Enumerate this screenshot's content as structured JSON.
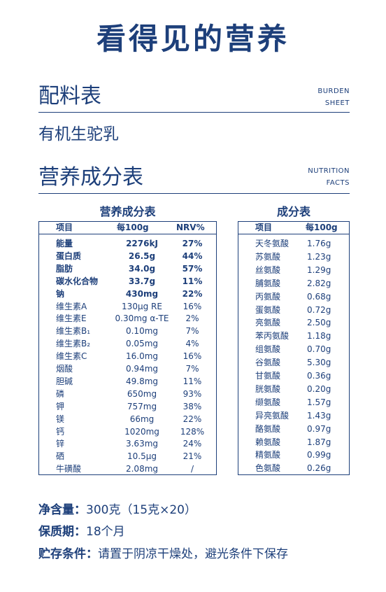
{
  "title": "看得见的营养",
  "burden": {
    "zh": "配料表",
    "en1": "BURDEN",
    "en2": "SHEET"
  },
  "ingredient": "有机生驼乳",
  "nutrition": {
    "zh": "营养成分表",
    "en1": "NUTRITION",
    "en2": "FACTS"
  },
  "nutrition_table": {
    "title": "营养成分表",
    "headers": [
      "项目",
      "每100g",
      "NRV%"
    ],
    "rows": [
      {
        "name": "能量",
        "value": "2276kJ",
        "nrv": "27%",
        "bold": true
      },
      {
        "name": "蛋白质",
        "value": "26.5g",
        "nrv": "44%",
        "bold": true
      },
      {
        "name": "脂肪",
        "value": "34.0g",
        "nrv": "57%",
        "bold": true
      },
      {
        "name": "碳水化合物",
        "value": "33.7g",
        "nrv": "11%",
        "bold": true
      },
      {
        "name": "钠",
        "value": "430mg",
        "nrv": "22%",
        "bold": true
      },
      {
        "name": "维生素A",
        "value": "130μg RE",
        "nrv": "16%",
        "bold": false
      },
      {
        "name": "维生素E",
        "value": "0.30mg α-TE",
        "nrv": "2%",
        "bold": false
      },
      {
        "name": "维生素B₁",
        "value": "0.10mg",
        "nrv": "7%",
        "bold": false
      },
      {
        "name": "维生素B₂",
        "value": "0.05mg",
        "nrv": "4%",
        "bold": false
      },
      {
        "name": "维生素C",
        "value": "16.0mg",
        "nrv": "16%",
        "bold": false
      },
      {
        "name": "烟酸",
        "value": "0.94mg",
        "nrv": "7%",
        "bold": false
      },
      {
        "name": "胆碱",
        "value": "49.8mg",
        "nrv": "11%",
        "bold": false
      },
      {
        "name": "磷",
        "value": "650mg",
        "nrv": "93%",
        "bold": false
      },
      {
        "name": "钾",
        "value": "757mg",
        "nrv": "38%",
        "bold": false
      },
      {
        "name": "镁",
        "value": "66mg",
        "nrv": "22%",
        "bold": false
      },
      {
        "name": "钙",
        "value": "1020mg",
        "nrv": "128%",
        "bold": false
      },
      {
        "name": "锌",
        "value": "3.63mg",
        "nrv": "24%",
        "bold": false
      },
      {
        "name": "硒",
        "value": "10.5μg",
        "nrv": "21%",
        "bold": false
      },
      {
        "name": "牛磺酸",
        "value": "2.08mg",
        "nrv": "/",
        "bold": false
      }
    ]
  },
  "amino_table": {
    "title": "成分表",
    "headers": [
      "项目",
      "每100g"
    ],
    "rows": [
      {
        "name": "天冬氨酸",
        "value": "1.76g"
      },
      {
        "name": "苏氨酸",
        "value": "1.23g"
      },
      {
        "name": "丝氨酸",
        "value": "1.29g"
      },
      {
        "name": "脯氨酸",
        "value": "2.82g"
      },
      {
        "name": "丙氨酸",
        "value": "0.68g"
      },
      {
        "name": "蛋氨酸",
        "value": "0.72g"
      },
      {
        "name": "亮氨酸",
        "value": "2.50g"
      },
      {
        "name": "苯丙氨酸",
        "value": "1.18g"
      },
      {
        "name": "组氨酸",
        "value": "0.70g"
      },
      {
        "name": "谷氨酸",
        "value": "5.30g"
      },
      {
        "name": "甘氨酸",
        "value": "0.36g"
      },
      {
        "name": "胱氨酸",
        "value": "0.20g"
      },
      {
        "name": "缬氨酸",
        "value": "1.57g"
      },
      {
        "name": "异亮氨酸",
        "value": "1.43g"
      },
      {
        "name": "酪氨酸",
        "value": "0.97g"
      },
      {
        "name": "赖氨酸",
        "value": "1.87g"
      },
      {
        "name": "精氨酸",
        "value": "0.99g"
      },
      {
        "name": "色氨酸",
        "value": "0.26g"
      }
    ]
  },
  "footer": {
    "net_label": "净含量：",
    "net_value": "300克（15克×20）",
    "shelf_label": "保质期：",
    "shelf_value": "18个月",
    "storage_label": "贮存条件：",
    "storage_value": "请置于阴凉干燥处，避光条件下保存"
  }
}
